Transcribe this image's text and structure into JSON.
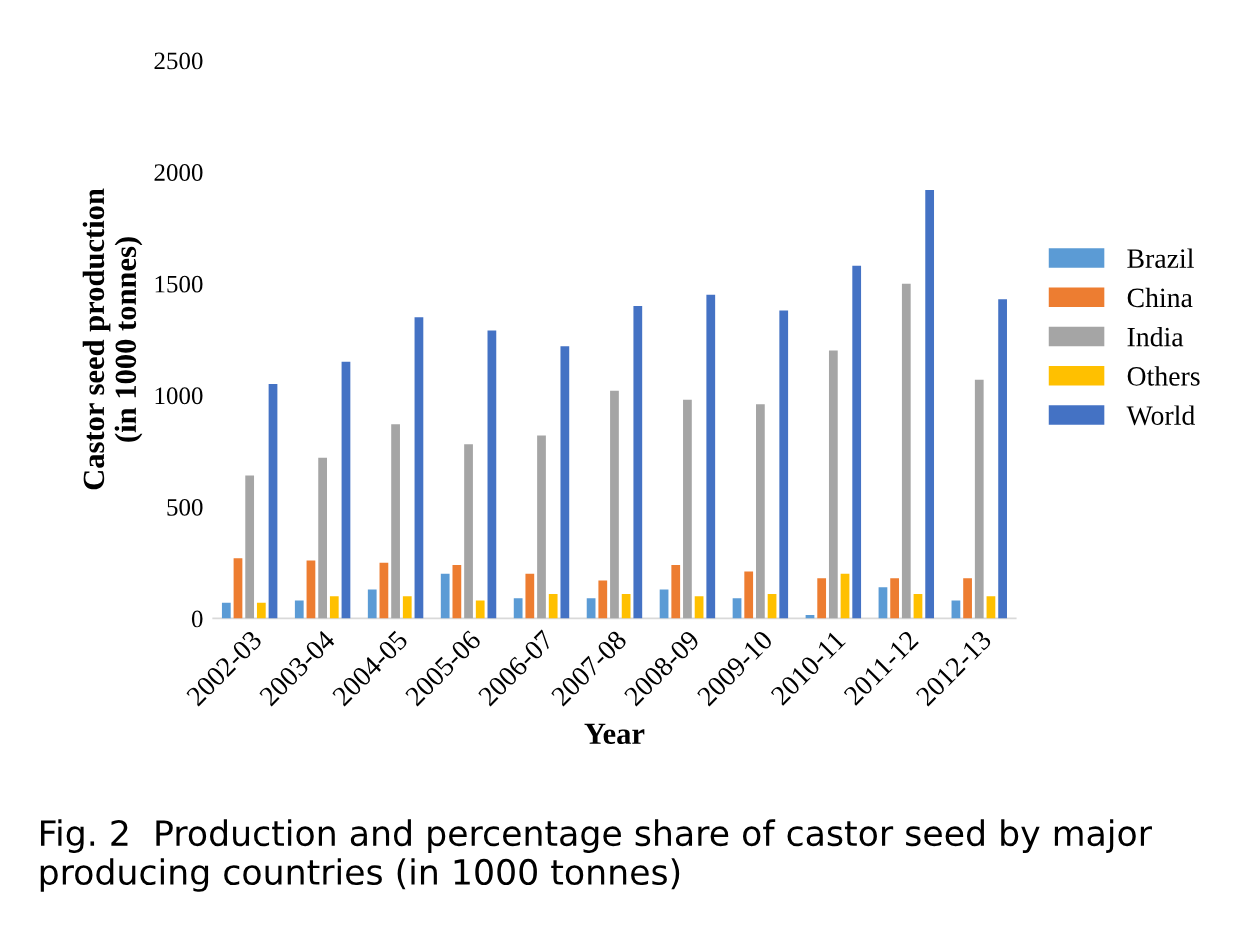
{
  "chart_data": {
    "type": "bar",
    "xlabel": "Year",
    "ylabel": "Castor seed production\n(in 1000 tonnes)",
    "categories": [
      "2002-03",
      "2003-04",
      "2004-05",
      "2005-06",
      "2006-07",
      "2007-08",
      "2008-09",
      "2009-10",
      "2010-11",
      "2011-12",
      "2012-13"
    ],
    "series": [
      {
        "name": "Brazil",
        "color": "#5b9bd5",
        "values": [
          70,
          80,
          130,
          200,
          90,
          90,
          130,
          90,
          15,
          140,
          80
        ]
      },
      {
        "name": "China",
        "color": "#ed7d31",
        "values": [
          270,
          260,
          250,
          240,
          200,
          170,
          240,
          210,
          180,
          180,
          180
        ]
      },
      {
        "name": "India",
        "color": "#a5a5a5",
        "values": [
          640,
          720,
          870,
          780,
          820,
          1020,
          980,
          960,
          1200,
          1500,
          1070
        ]
      },
      {
        "name": "Others",
        "color": "#ffc000",
        "values": [
          70,
          100,
          100,
          80,
          110,
          110,
          100,
          110,
          200,
          110,
          100
        ]
      },
      {
        "name": "World",
        "color": "#4472c4",
        "values": [
          1050,
          1150,
          1350,
          1290,
          1220,
          1400,
          1450,
          1380,
          1580,
          1920,
          1430
        ]
      }
    ],
    "ylim": [
      0,
      2500
    ],
    "yticks": [
      0,
      500,
      1000,
      1500,
      2000,
      2500
    ],
    "grid": false,
    "legend": "right",
    "annotations": [
      "Fig. 2  Production and percentage share of castor seed by major producing countries (in 1000 tonnes)"
    ]
  }
}
